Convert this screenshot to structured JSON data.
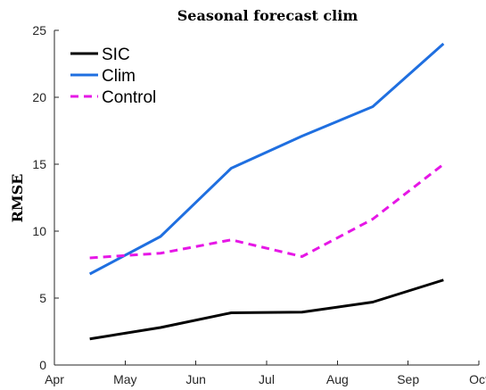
{
  "chart_data": {
    "type": "line",
    "title": "Seasonal forecast clim",
    "xlabel": "",
    "ylabel": "RMSE",
    "x_ticks": [
      "Apr",
      "May",
      "Jun",
      "Jul",
      "Aug",
      "Sep",
      "Oct"
    ],
    "y_ticks": [
      "0",
      "5",
      "10",
      "15",
      "20",
      "25"
    ],
    "xlim": [
      0,
      6
    ],
    "ylim": [
      0,
      25
    ],
    "grid": false,
    "legend_position": "top-left",
    "x": [
      0.5,
      1.5,
      2.5,
      3.5,
      4.5,
      5.5
    ],
    "series": [
      {
        "name": "SIC",
        "values": [
          1.95,
          2.8,
          3.9,
          3.95,
          4.7,
          6.35
        ],
        "color": "#000000",
        "style": "solid"
      },
      {
        "name": "Clim",
        "values": [
          6.8,
          9.6,
          14.7,
          17.1,
          19.3,
          24.0
        ],
        "color": "#1f6fe0",
        "style": "solid"
      },
      {
        "name": "Control",
        "values": [
          8.0,
          8.35,
          9.35,
          8.1,
          10.9,
          15.0
        ],
        "color": "#e617e6",
        "style": "dashed"
      }
    ]
  }
}
